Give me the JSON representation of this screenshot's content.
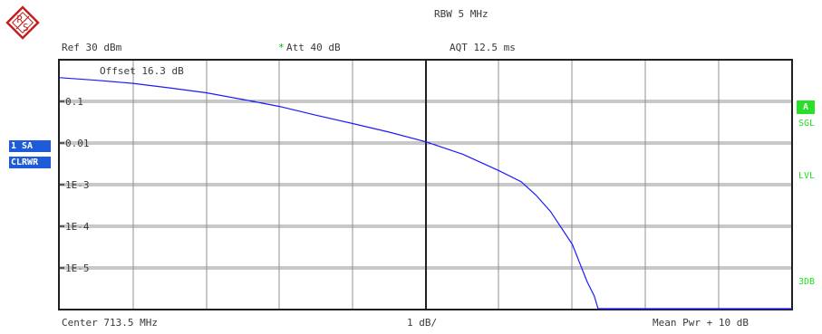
{
  "header": {
    "rbw": "RBW  5 MHz",
    "ref": "Ref  30 dBm",
    "att_marker": "*",
    "att": "Att  40 dB",
    "aqt": "AQT  12.5 ms"
  },
  "display": {
    "offset": "Offset  16.3 dB",
    "y_labels": [
      "0.1",
      "0.01",
      "1E-3",
      "1E-4",
      "1E-5"
    ],
    "trace_color": "#1a1aff"
  },
  "left_panel": {
    "trace_label": "1 SA",
    "trace_mode": "CLRWR"
  },
  "right_panel": {
    "a_label": "A",
    "sgl": "SGL",
    "lvl": "LVL",
    "db3": "3DB"
  },
  "footer": {
    "center": "Center 713.5 MHz",
    "scale": "1 dB/",
    "mean_pwr": "Mean Pwr + 10 dB"
  },
  "chart_data": {
    "type": "line",
    "description_units": "x: dB above mean power (0..10), y: probability (log, 1E-6..1)",
    "yscale": "log",
    "xlim": [
      0,
      10
    ],
    "ylim": [
      1e-06,
      1
    ],
    "x": [
      0,
      0.5,
      1.0,
      1.5,
      2.0,
      2.5,
      3.0,
      3.5,
      4.0,
      4.5,
      5.0,
      5.5,
      6.0,
      6.3,
      6.5,
      6.7,
      6.9,
      7.0,
      7.1,
      7.2,
      7.3,
      7.35,
      7.36,
      7.5,
      8.0,
      9.0,
      10.0
    ],
    "y": [
      0.37,
      0.32,
      0.27,
      0.21,
      0.16,
      0.11,
      0.075,
      0.046,
      0.029,
      0.018,
      0.0105,
      0.0053,
      0.0021,
      0.00115,
      0.00055,
      0.00022,
      6.5e-05,
      3.5e-05,
      1.25e-05,
      4.5e-06,
      2e-06,
      1e-06,
      1e-06,
      1e-06,
      1e-06,
      1e-06,
      1e-06
    ]
  }
}
